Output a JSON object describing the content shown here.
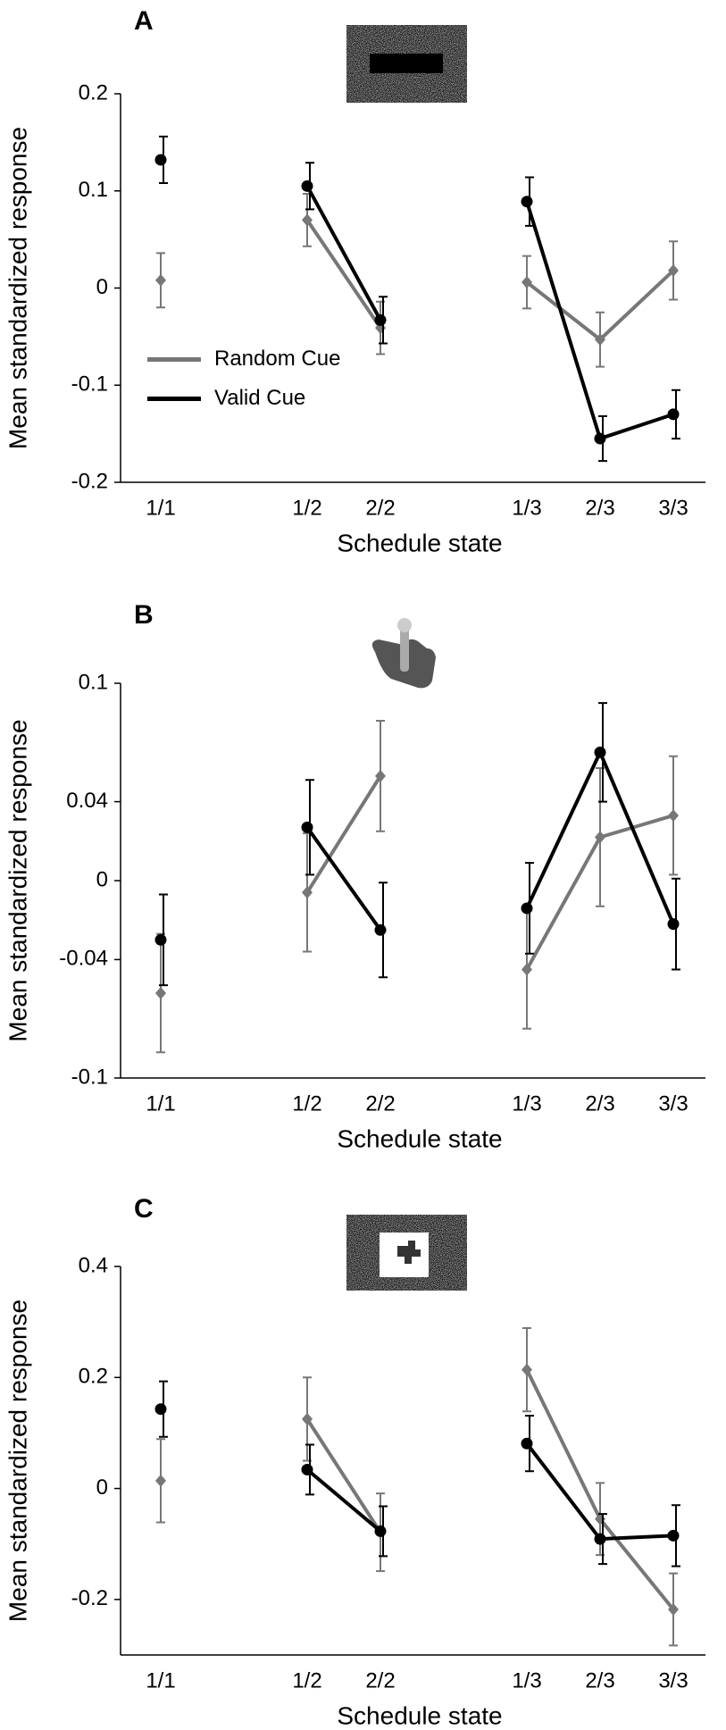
{
  "chart_data": [
    {
      "type": "line",
      "panel": "A",
      "ylabel": "Mean standardized response",
      "xlabel": "Schedule state",
      "categories": [
        "1/1",
        null,
        "1/2",
        "2/2",
        null,
        "1/3",
        "2/3",
        "3/3"
      ],
      "ylim": [
        -0.2,
        0.2
      ],
      "yticks": [
        -0.2,
        -0.1,
        0,
        0.1,
        0.2
      ],
      "legend": "center left",
      "series": [
        {
          "name": "Random Cue",
          "color": "#777777",
          "marker": "diamond",
          "values": [
            0.008,
            null,
            0.07,
            -0.041,
            null,
            0.006,
            -0.053,
            0.018
          ],
          "errors": [
            0.028,
            null,
            0.027,
            0.027,
            null,
            0.027,
            0.028,
            0.03
          ]
        },
        {
          "name": "Valid Cue",
          "color": "#000000",
          "marker": "circle",
          "values": [
            0.132,
            null,
            0.105,
            -0.033,
            null,
            0.089,
            -0.155,
            -0.13
          ],
          "errors": [
            0.024,
            null,
            0.024,
            0.024,
            null,
            0.025,
            0.023,
            0.025
          ]
        }
      ]
    },
    {
      "type": "line",
      "panel": "B",
      "ylabel": "Mean standardized response",
      "xlabel": "Schedule state",
      "categories": [
        "1/1",
        null,
        "1/2",
        "2/2",
        null,
        "1/3",
        "2/3",
        "3/3"
      ],
      "ylim": [
        -0.1,
        0.1
      ],
      "yticks": [
        -0.1,
        -0.04,
        0,
        0.04,
        0.1
      ],
      "series": [
        {
          "color": "#777777",
          "marker": "diamond",
          "values": [
            -0.057,
            null,
            -0.006,
            0.053,
            null,
            -0.045,
            0.022,
            0.033
          ],
          "errors": [
            0.03,
            null,
            0.03,
            0.028,
            null,
            0.03,
            0.035,
            0.03
          ]
        },
        {
          "color": "#000000",
          "marker": "circle",
          "values": [
            -0.03,
            null,
            0.027,
            -0.025,
            null,
            -0.014,
            0.065,
            -0.022
          ],
          "errors": [
            0.023,
            null,
            0.024,
            0.024,
            null,
            0.023,
            0.025,
            0.023
          ]
        }
      ]
    },
    {
      "type": "line",
      "panel": "C",
      "ylabel": "Mean standardized response",
      "xlabel": "Schedule state",
      "categories": [
        "1/1",
        null,
        "1/2",
        "2/2",
        null,
        "1/3",
        "2/3",
        "3/3"
      ],
      "ylim": [
        -0.3,
        0.4
      ],
      "yticks": [
        -0.2,
        0,
        0.2,
        0.4
      ],
      "series": [
        {
          "color": "#777777",
          "marker": "diamond",
          "values": [
            0.014,
            null,
            0.125,
            -0.079,
            null,
            0.214,
            -0.055,
            -0.218
          ],
          "errors": [
            0.075,
            null,
            0.075,
            0.07,
            null,
            0.075,
            0.065,
            0.065
          ]
        },
        {
          "color": "#000000",
          "marker": "circle",
          "values": [
            0.143,
            null,
            0.034,
            -0.077,
            null,
            0.081,
            -0.091,
            -0.085
          ],
          "errors": [
            0.05,
            null,
            0.045,
            0.045,
            null,
            0.05,
            0.045,
            0.055
          ]
        }
      ]
    }
  ]
}
